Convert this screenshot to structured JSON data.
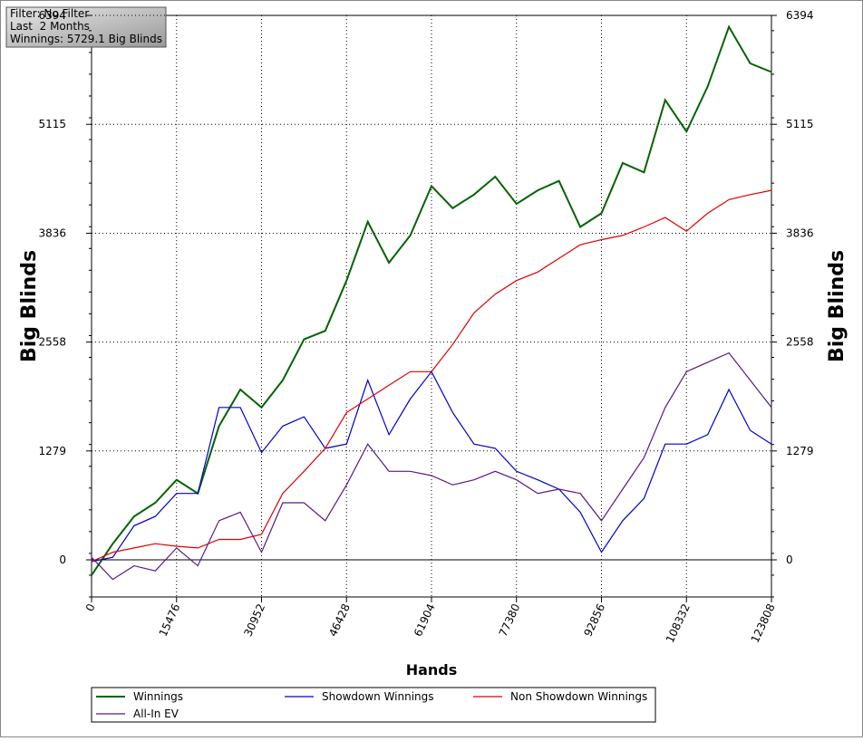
{
  "info": {
    "filter": "Filter: No Filter",
    "period": "Last  2 Months",
    "winnings": "Winnings: 5729.1 Big Blinds"
  },
  "chart_data": {
    "type": "line",
    "y_label": "Big Blinds",
    "x_label": "Hands",
    "xlim": [
      0,
      123808
    ],
    "xticks": [
      0,
      15476,
      30952,
      46428,
      61904,
      77380,
      92856,
      108332,
      123808
    ],
    "ylim": [
      -436,
      6394
    ],
    "yticks": [
      0,
      1279,
      2558,
      3836,
      5115,
      6394
    ],
    "grid": true,
    "x": [
      0,
      3869,
      7738,
      11607,
      15476,
      19345,
      23214,
      27083,
      30952,
      34821,
      38690,
      42559,
      46428,
      50297,
      54166,
      58035,
      61904,
      65773,
      69642,
      73511,
      77380,
      81249,
      85118,
      88987,
      92856,
      96725,
      100594,
      104463,
      108332,
      112201,
      116070,
      119939,
      123808
    ],
    "series": [
      {
        "name": "Winnings",
        "color": "#006400",
        "values": [
          -180,
          190,
          510,
          670,
          940,
          780,
          1570,
          2000,
          1790,
          2110,
          2590,
          2690,
          3280,
          3970,
          3490,
          3810,
          4390,
          4130,
          4290,
          4500,
          4180,
          4340,
          4450,
          3910,
          4070,
          4660,
          4550,
          5400,
          5030,
          5560,
          6260,
          5830,
          5729
        ]
      },
      {
        "name": "Showdown Winnings",
        "color": "#0000cc",
        "values": [
          -20,
          30,
          400,
          510,
          780,
          780,
          1790,
          1790,
          1260,
          1570,
          1680,
          1310,
          1360,
          2110,
          1470,
          1890,
          2210,
          1730,
          1360,
          1310,
          1040,
          940,
          830,
          560,
          90,
          460,
          720,
          1360,
          1360,
          1470,
          2000,
          1520,
          1360
        ]
      },
      {
        "name": "Non Showdown Winnings",
        "color": "#dd0000",
        "values": [
          -20,
          90,
          140,
          190,
          160,
          140,
          240,
          240,
          300,
          780,
          1040,
          1310,
          1730,
          1890,
          2050,
          2210,
          2210,
          2530,
          2900,
          3120,
          3280,
          3380,
          3540,
          3700,
          3760,
          3810,
          3910,
          4020,
          3860,
          4070,
          4230,
          4290,
          4340
        ]
      },
      {
        "name": "All-In EV",
        "color": "#551a8b",
        "values": [
          30,
          -230,
          -70,
          -130,
          140,
          -70,
          460,
          560,
          90,
          670,
          670,
          460,
          880,
          1360,
          1040,
          1040,
          990,
          880,
          940,
          1040,
          940,
          780,
          830,
          780,
          460,
          830,
          1200,
          1790,
          2210,
          2320,
          2430,
          2110,
          1790
        ]
      }
    ]
  }
}
